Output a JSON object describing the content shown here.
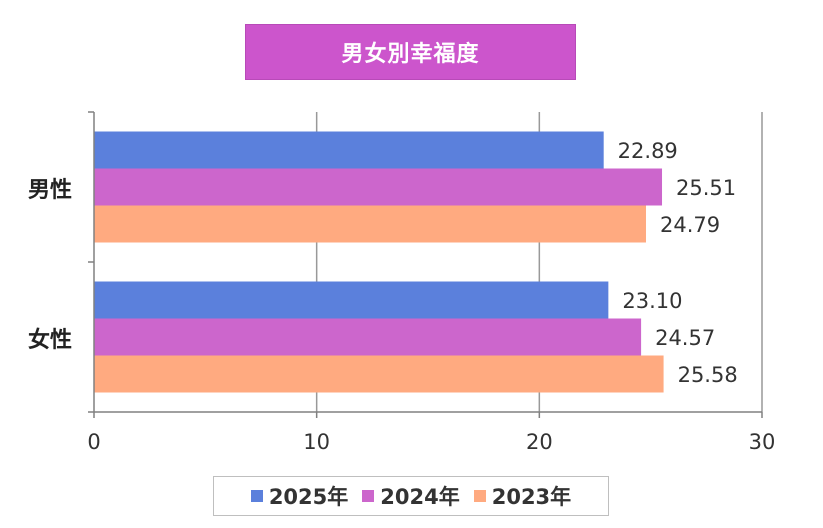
{
  "chart_data": {
    "type": "bar",
    "orientation": "horizontal",
    "title": "男女別幸福度",
    "categories": [
      "男性",
      "女性"
    ],
    "series": [
      {
        "name": "2025年",
        "values": [
          22.89,
          23.1
        ],
        "labels": [
          "22.89",
          "23.10"
        ],
        "color": "#5b80dc"
      },
      {
        "name": "2024年",
        "values": [
          25.51,
          24.57
        ],
        "labels": [
          "25.51",
          "24.57"
        ],
        "color": "#cc66cc"
      },
      {
        "name": "2023年",
        "values": [
          24.79,
          25.58
        ],
        "labels": [
          "24.79",
          "25.58"
        ],
        "color": "#ffaa80"
      }
    ],
    "xlim": [
      0,
      30
    ],
    "xticks": [
      "0",
      "10",
      "20",
      "30"
    ],
    "grid": true,
    "legend": "bottom"
  },
  "colors": {
    "title_bg": "#cc55cc",
    "grid": "#999999",
    "axis": "#808080"
  }
}
